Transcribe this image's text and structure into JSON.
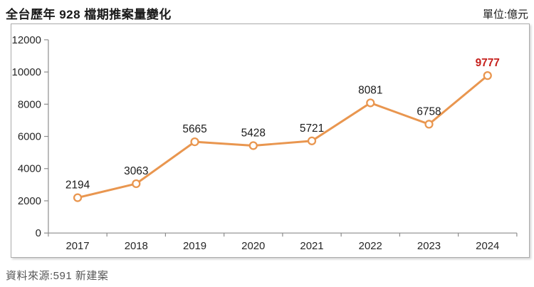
{
  "header": {
    "title": "全台歷年 928 檔期推案量變化",
    "unit": "單位:億元"
  },
  "footer": {
    "source": "資料來源:591 新建案"
  },
  "chart_data": {
    "type": "line",
    "title": "全台歷年 928 檔期推案量變化",
    "unit_label": "單位:億元",
    "categories": [
      "2017",
      "2018",
      "2019",
      "2020",
      "2021",
      "2022",
      "2023",
      "2024"
    ],
    "series": [
      {
        "name": "928檔期推案量",
        "values": [
          2194,
          3063,
          5665,
          5428,
          5721,
          8081,
          6758,
          9777
        ]
      }
    ],
    "data_labels": true,
    "ylim": [
      0,
      12000
    ],
    "yticks": [
      0,
      2000,
      4000,
      6000,
      8000,
      10000,
      12000
    ],
    "xlabel": "",
    "ylabel": "",
    "grid": false,
    "legend": "none",
    "colors": {
      "line": "#E9964F",
      "marker_fill": "#FFFFFF",
      "marker_stroke": "#E9964F",
      "data_label": "#1A1A1A",
      "highlight_label": "#C6201C",
      "axis": "#8C8C8C",
      "tick_label": "#262626"
    },
    "highlight": {
      "index": 7,
      "value": 9777,
      "bold": true
    },
    "marker_style": "open-circle"
  }
}
